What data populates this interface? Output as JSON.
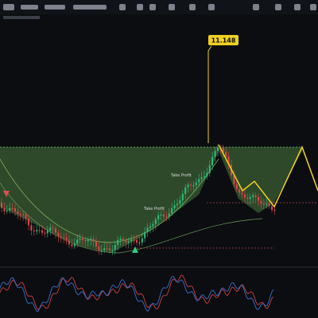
{
  "price_label": "11.148",
  "annotations": [
    "Take Profit",
    "Take Profit"
  ]
}
